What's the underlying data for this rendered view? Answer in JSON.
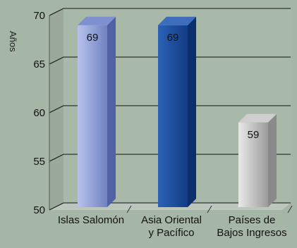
{
  "chart_data": {
    "type": "bar",
    "title": "",
    "xlabel": "",
    "ylabel": "Años",
    "ylim": [
      50,
      70
    ],
    "yticks": [
      50,
      55,
      60,
      65,
      70
    ],
    "categories": [
      [
        "Islas Salomón"
      ],
      [
        "Asia Oriental",
        "y Pacífico"
      ],
      [
        "Países de",
        "Bajos Ingresos"
      ]
    ],
    "values": [
      69,
      69,
      59
    ],
    "data_labels": [
      "69",
      "69",
      "59"
    ],
    "grid": true,
    "colors": {
      "background": "#a6b6a6",
      "plot_wall": "#a9b9a9",
      "floor": "#bcc6bc",
      "gridline": "#111111",
      "bars": [
        {
          "front_light": "#b8c2ec",
          "front_dark": "#6f82c2",
          "side": "#5062a4",
          "top": "#7f90ce"
        },
        {
          "front_light": "#2b62b6",
          "front_dark": "#123c86",
          "side": "#0b2e6c",
          "top": "#3e6dbc"
        },
        {
          "front_light": "#e9e9e9",
          "front_dark": "#9b9b9b",
          "side": "#8a8a8a",
          "top": "#cfcfcf"
        }
      ]
    }
  }
}
